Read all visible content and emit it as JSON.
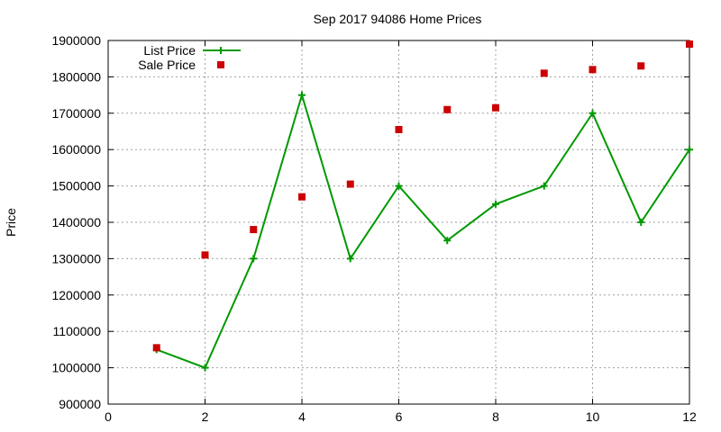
{
  "chart_data": {
    "type": "line",
    "title": "Sep 2017 94086 Home Prices",
    "xlabel": "",
    "ylabel": "Price",
    "xlim": [
      0,
      12
    ],
    "ylim": [
      900000,
      1900000
    ],
    "xticks": [
      0,
      2,
      4,
      6,
      8,
      10,
      12
    ],
    "yticks": [
      900000,
      1000000,
      1100000,
      1200000,
      1300000,
      1400000,
      1500000,
      1600000,
      1700000,
      1800000,
      1900000
    ],
    "grid": true,
    "legend_position": "top-left",
    "series": [
      {
        "name": "List Price",
        "style": "line+cross",
        "color": "#009900",
        "x": [
          1,
          2,
          3,
          4,
          5,
          6,
          7,
          8,
          9,
          10,
          11,
          12
        ],
        "y": [
          1050000,
          1000000,
          1300000,
          1750000,
          1300000,
          1500000,
          1350000,
          1450000,
          1500000,
          1700000,
          1400000,
          1600000
        ]
      },
      {
        "name": "Sale Price",
        "style": "square",
        "color": "#cc0000",
        "x": [
          1,
          2,
          3,
          4,
          5,
          6,
          7,
          8,
          9,
          10,
          11,
          12
        ],
        "y": [
          1055000,
          1310000,
          1380000,
          1470000,
          1505000,
          1655000,
          1710000,
          1715000,
          1810000,
          1820000,
          1830000,
          1890000
        ]
      }
    ]
  }
}
